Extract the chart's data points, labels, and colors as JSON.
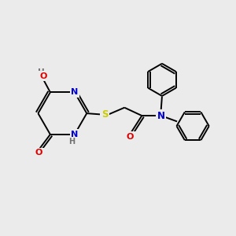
{
  "bg_color": "#ebebeb",
  "atom_colors": {
    "C": "#000000",
    "N": "#0000cc",
    "O": "#dd0000",
    "S": "#cccc00",
    "H": "#707070"
  },
  "bond_color": "#000000",
  "figsize": [
    3.0,
    3.0
  ],
  "dpi": 100
}
